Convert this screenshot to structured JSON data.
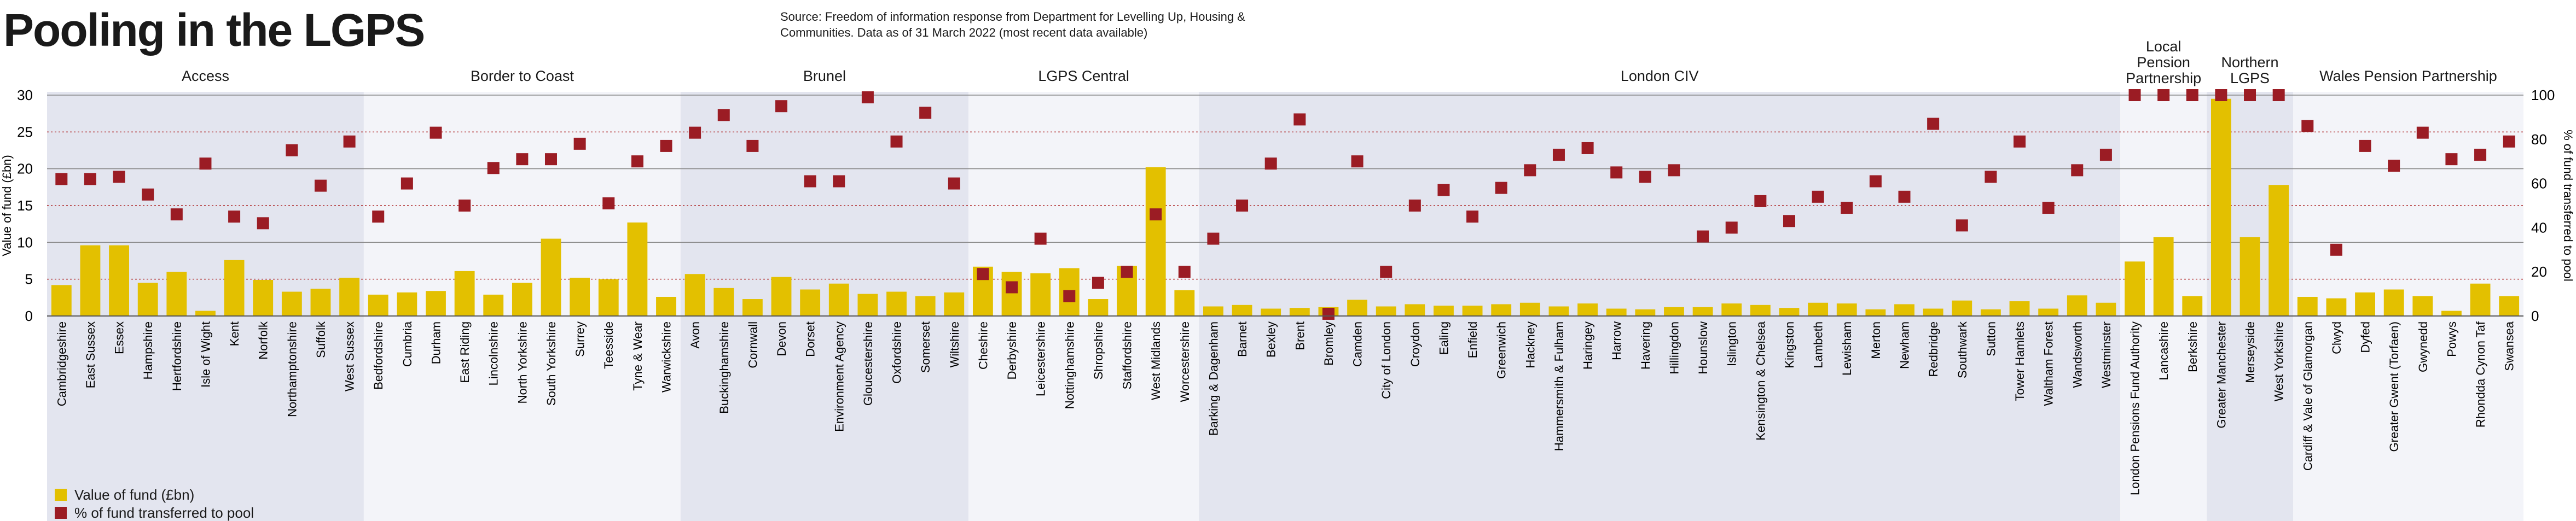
{
  "header": {
    "title": "Pooling in the LGPS",
    "source": "Source: Freedom of information response from Department for Levelling Up, Housing & Communities. Data as of 31 March 2022 (most recent data available)"
  },
  "legend": {
    "value_label": "Value of fund (£bn)",
    "pct_label": "% of fund transferred to pool"
  },
  "colors": {
    "bar": "#e3c000",
    "marker": "#9b1c24",
    "band_dark": "#e3e5ef",
    "band_light": "#f3f4f9",
    "grid_dotted": "#b02a2a",
    "grid_solid": "#888888"
  },
  "chart_data": {
    "type": "bar",
    "title": "Pooling in the LGPS",
    "ylabel": "Value of fund (£bn)",
    "y2label": "% of fund transferred to pool",
    "ylim": [
      0,
      30
    ],
    "y2lim": [
      0,
      100
    ],
    "yticks": [
      "0",
      "5",
      "10",
      "15",
      "20",
      "25",
      "30"
    ],
    "y2ticks": [
      "0",
      "20",
      "40",
      "60",
      "80",
      "100"
    ],
    "groups": [
      {
        "name": "Access",
        "funds": [
          {
            "name": "Cambridgeshire",
            "value": 4.2,
            "pct": 62
          },
          {
            "name": "East Sussex",
            "value": 9.6,
            "pct": 62
          },
          {
            "name": "Essex",
            "value": 9.6,
            "pct": 63
          },
          {
            "name": "Hampshire",
            "value": 4.5,
            "pct": 55
          },
          {
            "name": "Hertfordshire",
            "value": 6.0,
            "pct": 46
          },
          {
            "name": "Isle of Wight",
            "value": 0.7,
            "pct": 69
          },
          {
            "name": "Kent",
            "value": 7.6,
            "pct": 45
          },
          {
            "name": "Norfolk",
            "value": 4.9,
            "pct": 42
          },
          {
            "name": "Northamptonshire",
            "value": 3.3,
            "pct": 75
          },
          {
            "name": "Suffolk",
            "value": 3.7,
            "pct": 59
          },
          {
            "name": "West Sussex",
            "value": 5.2,
            "pct": 79
          }
        ]
      },
      {
        "name": "Border to Coast",
        "funds": [
          {
            "name": "Bedfordshire",
            "value": 2.9,
            "pct": 45
          },
          {
            "name": "Cumbria",
            "value": 3.2,
            "pct": 60
          },
          {
            "name": "Durham",
            "value": 3.4,
            "pct": 83
          },
          {
            "name": "East Riding",
            "value": 6.1,
            "pct": 50
          },
          {
            "name": "Lincolnshire",
            "value": 2.9,
            "pct": 67
          },
          {
            "name": "North Yorkshire",
            "value": 4.5,
            "pct": 71
          },
          {
            "name": "South Yorkshire",
            "value": 10.5,
            "pct": 71
          },
          {
            "name": "Surrey",
            "value": 5.2,
            "pct": 78
          },
          {
            "name": "Teesside",
            "value": 5.0,
            "pct": 51
          },
          {
            "name": "Tyne & Wear",
            "value": 12.7,
            "pct": 70
          },
          {
            "name": "Warwickshire",
            "value": 2.6,
            "pct": 77
          }
        ]
      },
      {
        "name": "Brunel",
        "funds": [
          {
            "name": "Avon",
            "value": 5.7,
            "pct": 83
          },
          {
            "name": "Buckinghamshire",
            "value": 3.8,
            "pct": 91
          },
          {
            "name": "Cornwall",
            "value": 2.3,
            "pct": 77
          },
          {
            "name": "Devon",
            "value": 5.3,
            "pct": 95
          },
          {
            "name": "Dorset",
            "value": 3.6,
            "pct": 61
          },
          {
            "name": "Environment Agency",
            "value": 4.4,
            "pct": 61
          },
          {
            "name": "Gloucestershire",
            "value": 3.0,
            "pct": 99
          },
          {
            "name": "Oxfordshire",
            "value": 3.3,
            "pct": 79
          },
          {
            "name": "Somerset",
            "value": 2.7,
            "pct": 92
          },
          {
            "name": "Wiltshire",
            "value": 3.2,
            "pct": 60
          }
        ]
      },
      {
        "name": "LGPS Central",
        "funds": [
          {
            "name": "Cheshire",
            "value": 6.7,
            "pct": 19
          },
          {
            "name": "Derbyshire",
            "value": 6.0,
            "pct": 13
          },
          {
            "name": "Leicestershire",
            "value": 5.8,
            "pct": 35
          },
          {
            "name": "Nottinghamshire",
            "value": 6.5,
            "pct": 9
          },
          {
            "name": "Shropshire",
            "value": 2.3,
            "pct": 15
          },
          {
            "name": "Staffordshire",
            "value": 6.8,
            "pct": 20
          },
          {
            "name": "West Midlands",
            "value": 20.2,
            "pct": 46
          },
          {
            "name": "Worcestershire",
            "value": 3.5,
            "pct": 20
          }
        ]
      },
      {
        "name": "London CIV",
        "funds": [
          {
            "name": "Barking & Dagenham",
            "value": 1.3,
            "pct": 35
          },
          {
            "name": "Barnet",
            "value": 1.5,
            "pct": 50
          },
          {
            "name": "Bexley",
            "value": 1.0,
            "pct": 69
          },
          {
            "name": "Brent",
            "value": 1.1,
            "pct": 89
          },
          {
            "name": "Bromley",
            "value": 1.2,
            "pct": 1
          },
          {
            "name": "Camden",
            "value": 2.2,
            "pct": 70
          },
          {
            "name": "City of London",
            "value": 1.3,
            "pct": 20
          },
          {
            "name": "Croydon",
            "value": 1.6,
            "pct": 50
          },
          {
            "name": "Ealing",
            "value": 1.4,
            "pct": 57
          },
          {
            "name": "Enfield",
            "value": 1.4,
            "pct": 45
          },
          {
            "name": "Greenwich",
            "value": 1.6,
            "pct": 58
          },
          {
            "name": "Hackney",
            "value": 1.8,
            "pct": 66
          },
          {
            "name": "Hammersmith & Fulham",
            "value": 1.3,
            "pct": 73
          },
          {
            "name": "Haringey",
            "value": 1.7,
            "pct": 76
          },
          {
            "name": "Harrow",
            "value": 1.0,
            "pct": 65
          },
          {
            "name": "Havering",
            "value": 0.9,
            "pct": 63
          },
          {
            "name": "Hillingdon",
            "value": 1.2,
            "pct": 66
          },
          {
            "name": "Hounslow",
            "value": 1.2,
            "pct": 36
          },
          {
            "name": "Islington",
            "value": 1.7,
            "pct": 40
          },
          {
            "name": "Kensington & Chelsea",
            "value": 1.5,
            "pct": 52
          },
          {
            "name": "Kingston",
            "value": 1.1,
            "pct": 43
          },
          {
            "name": "Lambeth",
            "value": 1.8,
            "pct": 54
          },
          {
            "name": "Lewisham",
            "value": 1.7,
            "pct": 49
          },
          {
            "name": "Merton",
            "value": 0.9,
            "pct": 61
          },
          {
            "name": "Newham",
            "value": 1.6,
            "pct": 54
          },
          {
            "name": "Redbridge",
            "value": 1.0,
            "pct": 87
          },
          {
            "name": "Southwark",
            "value": 2.1,
            "pct": 41
          },
          {
            "name": "Sutton",
            "value": 0.9,
            "pct": 63
          },
          {
            "name": "Tower Hamlets",
            "value": 2.0,
            "pct": 79
          },
          {
            "name": "Waltham Forest",
            "value": 1.0,
            "pct": 49
          },
          {
            "name": "Wandsworth",
            "value": 2.8,
            "pct": 66
          },
          {
            "name": "Westminster",
            "value": 1.8,
            "pct": 73
          }
        ]
      },
      {
        "name": "Local Pension Partnership",
        "funds": [
          {
            "name": "London Pensions Fund Authority",
            "value": 7.4,
            "pct": 100
          },
          {
            "name": "Lancashire",
            "value": 10.7,
            "pct": 100
          },
          {
            "name": "Berkshire",
            "value": 2.7,
            "pct": 100
          }
        ]
      },
      {
        "name": "Northern LGPS",
        "funds": [
          {
            "name": "Greater Manchester",
            "value": 29.5,
            "pct": 100
          },
          {
            "name": "Merseyside",
            "value": 10.7,
            "pct": 100
          },
          {
            "name": "West Yorkshire",
            "value": 17.8,
            "pct": 100
          }
        ]
      },
      {
        "name": "Wales Pension Partnership",
        "funds": [
          {
            "name": "Cardiff & Vale of Glamorgan",
            "value": 2.6,
            "pct": 86
          },
          {
            "name": "Clwyd",
            "value": 2.4,
            "pct": 30
          },
          {
            "name": "Dyfed",
            "value": 3.2,
            "pct": 77
          },
          {
            "name": "Greater Gwent (Torfaen)",
            "value": 3.6,
            "pct": 68
          },
          {
            "name": "Gwynedd",
            "value": 2.7,
            "pct": 83
          },
          {
            "name": "Powys",
            "value": 0.7,
            "pct": 71
          },
          {
            "name": "Rhondda Cynon Taf",
            "value": 4.4,
            "pct": 73
          },
          {
            "name": "Swansea",
            "value": 2.7,
            "pct": 79
          }
        ]
      }
    ]
  }
}
